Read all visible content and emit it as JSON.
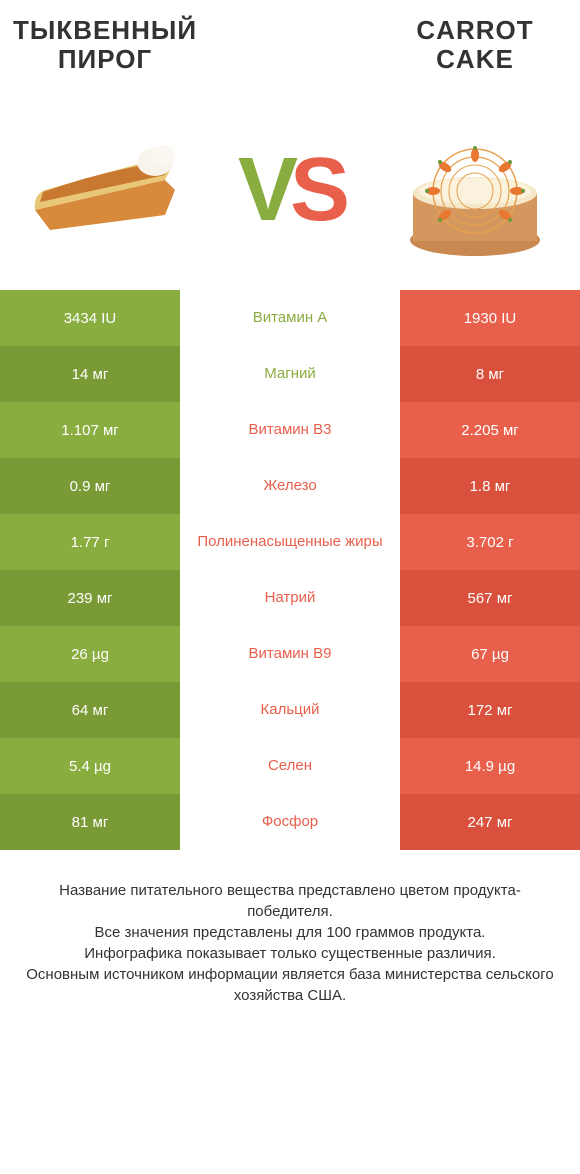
{
  "colors": {
    "left": "#8aad3f",
    "right": "#e8604c",
    "left_dark": "#7a9a36",
    "right_dark": "#d9503c",
    "text": "#333333"
  },
  "header": {
    "left_title": "ТЫКВЕННЫЙ ПИРОГ",
    "right_title": "CARROT CAKE",
    "vs_v": "V",
    "vs_s": "S"
  },
  "nutrients": [
    {
      "label": "Витамин A",
      "left": "3434 IU",
      "right": "1930 IU",
      "winner": "left"
    },
    {
      "label": "Магний",
      "left": "14 мг",
      "right": "8 мг",
      "winner": "left"
    },
    {
      "label": "Витамин B3",
      "left": "1.107 мг",
      "right": "2.205 мг",
      "winner": "right"
    },
    {
      "label": "Железо",
      "left": "0.9 мг",
      "right": "1.8 мг",
      "winner": "right"
    },
    {
      "label": "Полиненасыщенные жиры",
      "left": "1.77 г",
      "right": "3.702 г",
      "winner": "right"
    },
    {
      "label": "Натрий",
      "left": "239 мг",
      "right": "567 мг",
      "winner": "right"
    },
    {
      "label": "Витамин B9",
      "left": "26 µg",
      "right": "67 µg",
      "winner": "right"
    },
    {
      "label": "Кальций",
      "left": "64 мг",
      "right": "172 мг",
      "winner": "right"
    },
    {
      "label": "Селен",
      "left": "5.4 µg",
      "right": "14.9 µg",
      "winner": "right"
    },
    {
      "label": "Фосфор",
      "left": "81 мг",
      "right": "247 мг",
      "winner": "right"
    }
  ],
  "footer": {
    "line1": "Название питательного вещества представлено цветом продукта-победителя.",
    "line2": "Все значения представлены для 100 граммов продукта.",
    "line3": "Инфографика показывает только существенные различия.",
    "line4": "Основным источником информации является база министерства сельского хозяйства США."
  }
}
